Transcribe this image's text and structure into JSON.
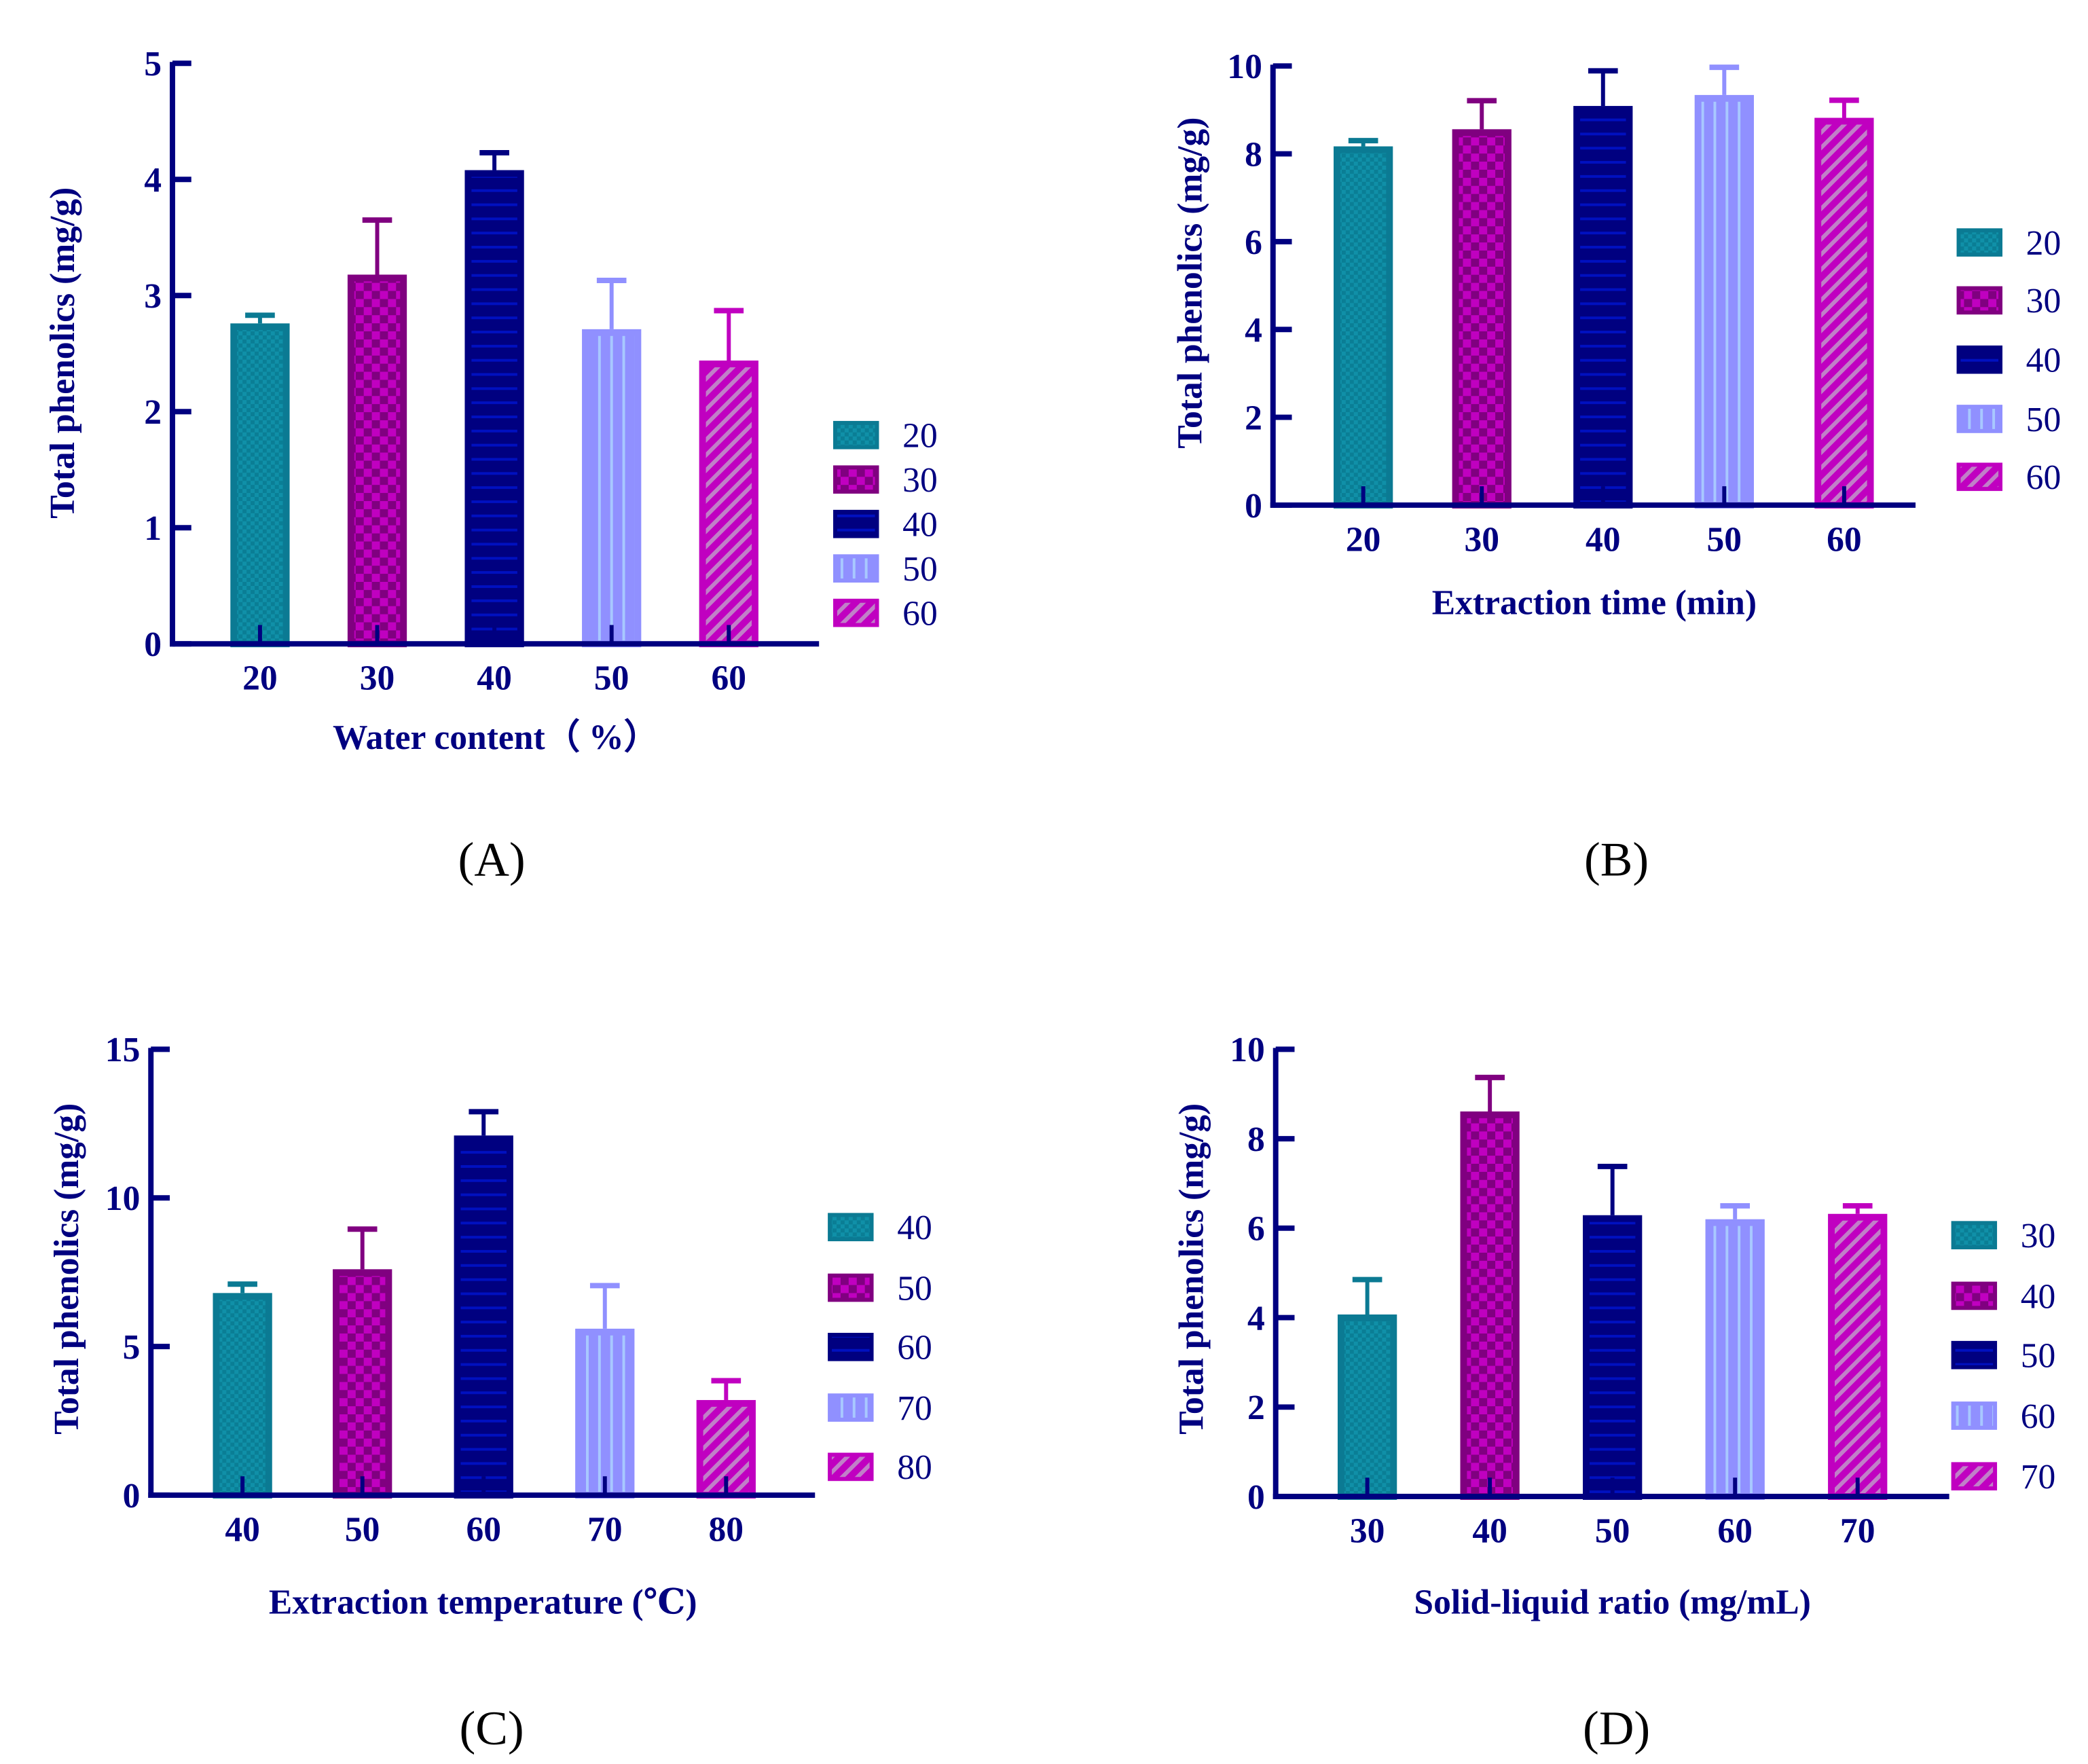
{
  "chart_data": [
    {
      "panel_label": "(A)",
      "type": "bar",
      "xlabel": "Water content（ %）",
      "ylabel": "Total  phenolics (mg/g)",
      "ylim": [
        0,
        5
      ],
      "yticks": [
        0,
        1,
        2,
        3,
        4,
        5
      ],
      "categories": [
        "20",
        "30",
        "40",
        "50",
        "60"
      ],
      "values": [
        2.76,
        3.18,
        4.08,
        2.71,
        2.44
      ],
      "errors": [
        0.07,
        0.47,
        0.15,
        0.42,
        0.43
      ],
      "legend": [
        "20",
        "30",
        "40",
        "50",
        "60"
      ],
      "legend_position": "right"
    },
    {
      "panel_label": "(B)",
      "type": "bar",
      "xlabel": "Extraction time (min)",
      "ylabel": "Total  phenolics (mg/g)",
      "ylim": [
        0,
        10
      ],
      "yticks": [
        0,
        2,
        4,
        6,
        8,
        10
      ],
      "categories": [
        "20",
        "30",
        "40",
        "50",
        "60"
      ],
      "values": [
        8.17,
        8.56,
        9.09,
        9.34,
        8.82
      ],
      "errors": [
        0.13,
        0.65,
        0.8,
        0.63,
        0.4
      ],
      "legend": [
        "20",
        "30",
        "40",
        "50",
        "60"
      ],
      "legend_position": "right"
    },
    {
      "panel_label": "(C)",
      "type": "bar",
      "xlabel": "Extraction temperature (℃)",
      "ylabel": "Total  phenolics (mg/g)",
      "ylim": [
        0,
        15
      ],
      "yticks": [
        0,
        5,
        10,
        15
      ],
      "categories": [
        "40",
        "50",
        "60",
        "70",
        "80"
      ],
      "values": [
        6.8,
        7.6,
        12.1,
        5.6,
        3.2
      ],
      "errors": [
        0.3,
        1.35,
        0.8,
        1.45,
        0.65
      ],
      "legend": [
        "40",
        "50",
        "60",
        "70",
        "80"
      ],
      "legend_position": "right"
    },
    {
      "panel_label": "(D)",
      "type": "bar",
      "xlabel": "Solid-liquid ratio (mg/mL)",
      "ylabel": "Total  phenolics (mg/g)",
      "ylim": [
        0,
        10
      ],
      "yticks": [
        0,
        2,
        4,
        6,
        8,
        10
      ],
      "categories": [
        "30",
        "40",
        "50",
        "60",
        "70"
      ],
      "values": [
        4.07,
        8.61,
        6.29,
        6.2,
        6.32
      ],
      "errors": [
        0.78,
        0.76,
        1.09,
        0.3,
        0.18
      ],
      "legend": [
        "30",
        "40",
        "50",
        "60",
        "70"
      ],
      "legend_position": "right"
    }
  ],
  "colors": {
    "axis": "#000080",
    "series": [
      {
        "border": "#0b7a93",
        "fill": "#1090a8",
        "pattern": "fine-checker"
      },
      {
        "border": "#800080",
        "fill": "#c000c0",
        "pattern": "checker"
      },
      {
        "border": "#000080",
        "fill": "#000080",
        "pattern": "horizontal-lines"
      },
      {
        "border": "#9090ff",
        "fill": "#9090ff",
        "pattern": "vertical-lines"
      },
      {
        "border": "#c000c0",
        "fill": "#c000c0",
        "pattern": "diagonal-hatch"
      }
    ]
  }
}
